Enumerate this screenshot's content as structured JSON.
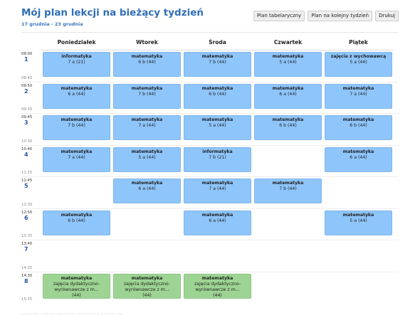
{
  "header": {
    "title": "Mój plan lekcji na bieżący tydzień",
    "date_range": "17 grudnia - 23 grudnia"
  },
  "toolbar": {
    "table_plan_label": "Plan tabelaryczny",
    "next_week_label": "Plan na kolejny tydzień",
    "print_label": "Drukuj"
  },
  "days": [
    "Poniedziałek",
    "Wtorek",
    "Środa",
    "Czwartek",
    "Piątek"
  ],
  "periods": [
    {
      "num": "1",
      "start": "08:00",
      "end": "08:45"
    },
    {
      "num": "2",
      "start": "08:50",
      "end": "09:35"
    },
    {
      "num": "3",
      "start": "09:45",
      "end": "10:30"
    },
    {
      "num": "4",
      "start": "10:40",
      "end": "11:25"
    },
    {
      "num": "5",
      "start": "11:45",
      "end": "12:30"
    },
    {
      "num": "6",
      "start": "12:50",
      "end": "13:35"
    },
    {
      "num": "7",
      "start": "13:40",
      "end": "14:25"
    },
    {
      "num": "8",
      "start": "14:30",
      "end": "15:15"
    }
  ],
  "lessons": [
    {
      "day": 0,
      "period": 0,
      "subject": "informatyka",
      "class": "7 a (21)"
    },
    {
      "day": 1,
      "period": 0,
      "subject": "matematyka",
      "class": "6 b (44)"
    },
    {
      "day": 2,
      "period": 0,
      "subject": "matematyka",
      "class": "7 b (44)"
    },
    {
      "day": 3,
      "period": 0,
      "subject": "matematyka",
      "class": "5 a (44)"
    },
    {
      "day": 4,
      "period": 0,
      "subject": "zajęcia z wychowawcą",
      "class": "5 a (44)"
    },
    {
      "day": 0,
      "period": 1,
      "subject": "matematyka",
      "class": "6 a (44)"
    },
    {
      "day": 1,
      "period": 1,
      "subject": "matematyka",
      "class": "7 b (44)"
    },
    {
      "day": 2,
      "period": 1,
      "subject": "matematyka",
      "class": "6 b (44)"
    },
    {
      "day": 3,
      "period": 1,
      "subject": "matematyka",
      "class": "6 a (44)"
    },
    {
      "day": 4,
      "period": 1,
      "subject": "matematyka",
      "class": "7 a (44)"
    },
    {
      "day": 0,
      "period": 2,
      "subject": "matematyka",
      "class": "7 b (44)"
    },
    {
      "day": 1,
      "period": 2,
      "subject": "matematyka",
      "class": "7 a (44)"
    },
    {
      "day": 2,
      "period": 2,
      "subject": "matematyka",
      "class": "5 a (44)"
    },
    {
      "day": 3,
      "period": 2,
      "subject": "matematyka",
      "class": "6 b (44)"
    },
    {
      "day": 4,
      "period": 2,
      "subject": "matematyka",
      "class": "6 b (44)"
    },
    {
      "day": 0,
      "period": 3,
      "subject": "matematyka",
      "class": "7 a (44)"
    },
    {
      "day": 1,
      "period": 3,
      "subject": "matematyka",
      "class": "5 a (44)"
    },
    {
      "day": 2,
      "period": 3,
      "subject": "informatyka",
      "class": "7 b (21)"
    },
    {
      "day": 4,
      "period": 3,
      "subject": "matematyka",
      "class": "6 a (44)"
    },
    {
      "day": 1,
      "period": 4,
      "subject": "matematyka",
      "class": "6 a (44)"
    },
    {
      "day": 2,
      "period": 4,
      "subject": "matematyka",
      "class": "7 a (44)"
    },
    {
      "day": 3,
      "period": 4,
      "subject": "matematyka",
      "class": "7 b (44)"
    },
    {
      "day": 0,
      "period": 5,
      "subject": "matematyka",
      "class": "6 b (44)"
    },
    {
      "day": 2,
      "period": 5,
      "subject": "matematyka",
      "class": "6 a (44)"
    },
    {
      "day": 4,
      "period": 5,
      "subject": "matematyka",
      "class": "5 a (44)"
    },
    {
      "day": 0,
      "period": 7,
      "subject": "matematyka",
      "desc": "zajęcia dydaktyczno-wyrównawcze z m...",
      "class": "(44)",
      "color": "#9ed493"
    },
    {
      "day": 1,
      "period": 7,
      "subject": "matematyka",
      "desc": "zajęcia dydaktyczno-wyrównawcze z m...",
      "class": "(44)",
      "color": "#9ed493"
    },
    {
      "day": 2,
      "period": 7,
      "subject": "matematyka",
      "desc": "zajęcia dydaktyczno-wyrównawcze z m...",
      "class": "(44)",
      "color": "#9ed493"
    }
  ],
  "footer": {
    "note": "Legenda: zajęcia odwołane, zastępstwa, zmiany sal"
  },
  "colors": {
    "lesson_blue": "#8ec5fb",
    "lesson_green": "#9ed493",
    "title": "#2f6fb5",
    "period_number": "#2b55a8"
  }
}
